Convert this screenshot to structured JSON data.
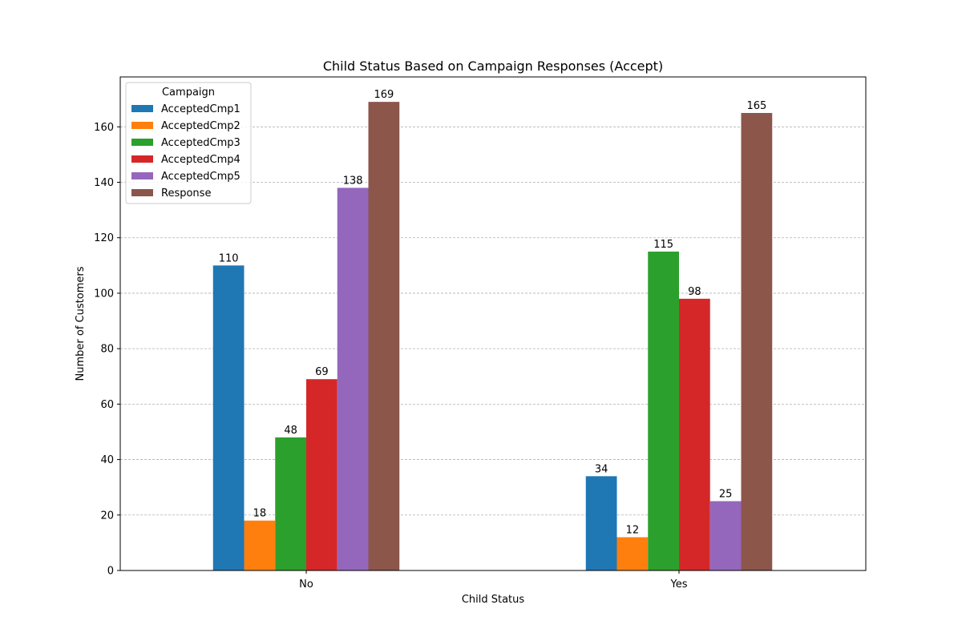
{
  "chart_data": {
    "type": "bar",
    "title": "Child Status Based on Campaign Responses (Accept)",
    "xlabel": "Child Status",
    "ylabel": "Number of Customers",
    "categories": [
      "No",
      "Yes"
    ],
    "ylim": [
      0,
      178
    ],
    "yticks": [
      0,
      20,
      40,
      60,
      80,
      100,
      120,
      140,
      160
    ],
    "grid": "y-dashed",
    "legend": {
      "title": "Campaign",
      "placement": "top-left"
    },
    "series": [
      {
        "name": "AcceptedCmp1",
        "values": [
          110,
          34
        ],
        "color": "#1f77b4"
      },
      {
        "name": "AcceptedCmp2",
        "values": [
          18,
          12
        ],
        "color": "#ff7f0e"
      },
      {
        "name": "AcceptedCmp3",
        "values": [
          48,
          115
        ],
        "color": "#2ca02c"
      },
      {
        "name": "AcceptedCmp4",
        "values": [
          69,
          98
        ],
        "color": "#d62728"
      },
      {
        "name": "AcceptedCmp5",
        "values": [
          138,
          25
        ],
        "color": "#9467bd"
      },
      {
        "name": "Response",
        "values": [
          169,
          165
        ],
        "color": "#8c564b"
      }
    ]
  }
}
